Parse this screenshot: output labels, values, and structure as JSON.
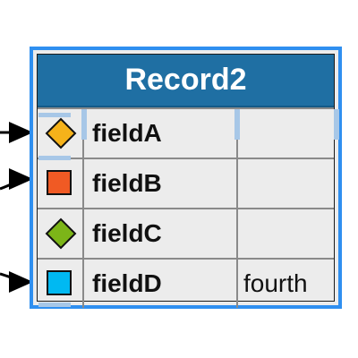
{
  "record": {
    "title": "Record2",
    "fields": [
      {
        "name": "fieldA",
        "value": "",
        "icon": "diamond-icon",
        "color": "#f5b21a"
      },
      {
        "name": "fieldB",
        "value": "",
        "icon": "square-icon",
        "color": "#f05a24"
      },
      {
        "name": "fieldC",
        "value": "",
        "icon": "diamond-icon",
        "color": "#7cb518"
      },
      {
        "name": "fieldD",
        "value": "fourth",
        "icon": "square-icon",
        "color": "#00b9f2"
      }
    ]
  },
  "colors": {
    "header": "#1f6fa3",
    "selection": "#2f8ff0",
    "link": "#000000"
  }
}
